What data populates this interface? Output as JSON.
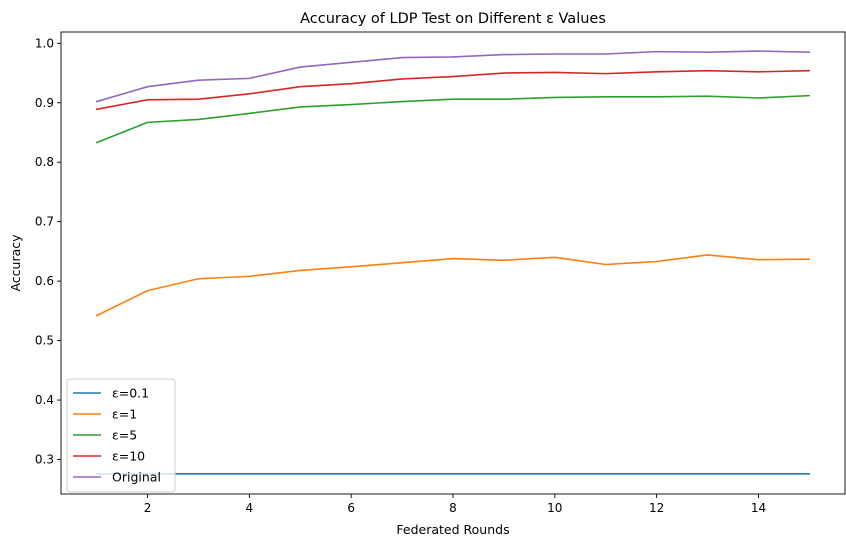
{
  "chart_data": {
    "type": "line",
    "title": "Accuracy of LDP Test on Different ε Values",
    "xlabel": "Federated Rounds",
    "ylabel": "Accuracy",
    "x": [
      1,
      2,
      3,
      4,
      5,
      6,
      7,
      8,
      9,
      10,
      11,
      12,
      13,
      14,
      15
    ],
    "xlim": [
      0.3,
      15.7
    ],
    "ylim": [
      0.242,
      1.019
    ],
    "xticks": [
      2,
      4,
      6,
      8,
      10,
      12,
      14
    ],
    "xtick_labels": [
      "2",
      "4",
      "6",
      "8",
      "10",
      "12",
      "14"
    ],
    "yticks": [
      0.3,
      0.4,
      0.5,
      0.6,
      0.7,
      0.8,
      0.9,
      1.0
    ],
    "ytick_labels": [
      "0.3",
      "0.4",
      "0.5",
      "0.6",
      "0.7",
      "0.8",
      "0.9",
      "1.0"
    ],
    "grid": false,
    "legend_position": "lower-left",
    "series": [
      {
        "name": "ε=0.1",
        "color": "#1f77b4",
        "values": [
          0.276,
          0.276,
          0.276,
          0.276,
          0.276,
          0.276,
          0.276,
          0.276,
          0.276,
          0.276,
          0.276,
          0.276,
          0.276,
          0.276,
          0.276
        ]
      },
      {
        "name": "ε=1",
        "color": "#ff7f0e",
        "values": [
          0.542,
          0.584,
          0.604,
          0.608,
          0.618,
          0.624,
          0.631,
          0.638,
          0.635,
          0.64,
          0.628,
          0.633,
          0.644,
          0.636,
          0.637
        ]
      },
      {
        "name": "ε=5",
        "color": "#2ca02c",
        "values": [
          0.833,
          0.867,
          0.872,
          0.882,
          0.893,
          0.897,
          0.902,
          0.906,
          0.906,
          0.909,
          0.91,
          0.91,
          0.911,
          0.908,
          0.912
        ]
      },
      {
        "name": "ε=10",
        "color": "#d62728",
        "values": [
          0.889,
          0.905,
          0.906,
          0.915,
          0.927,
          0.932,
          0.94,
          0.944,
          0.95,
          0.951,
          0.949,
          0.952,
          0.954,
          0.952,
          0.954
        ]
      },
      {
        "name": "Original",
        "color": "#9467bd",
        "values": [
          0.902,
          0.927,
          0.938,
          0.941,
          0.96,
          0.968,
          0.976,
          0.977,
          0.981,
          0.982,
          0.982,
          0.986,
          0.985,
          0.987,
          0.985
        ]
      }
    ]
  }
}
